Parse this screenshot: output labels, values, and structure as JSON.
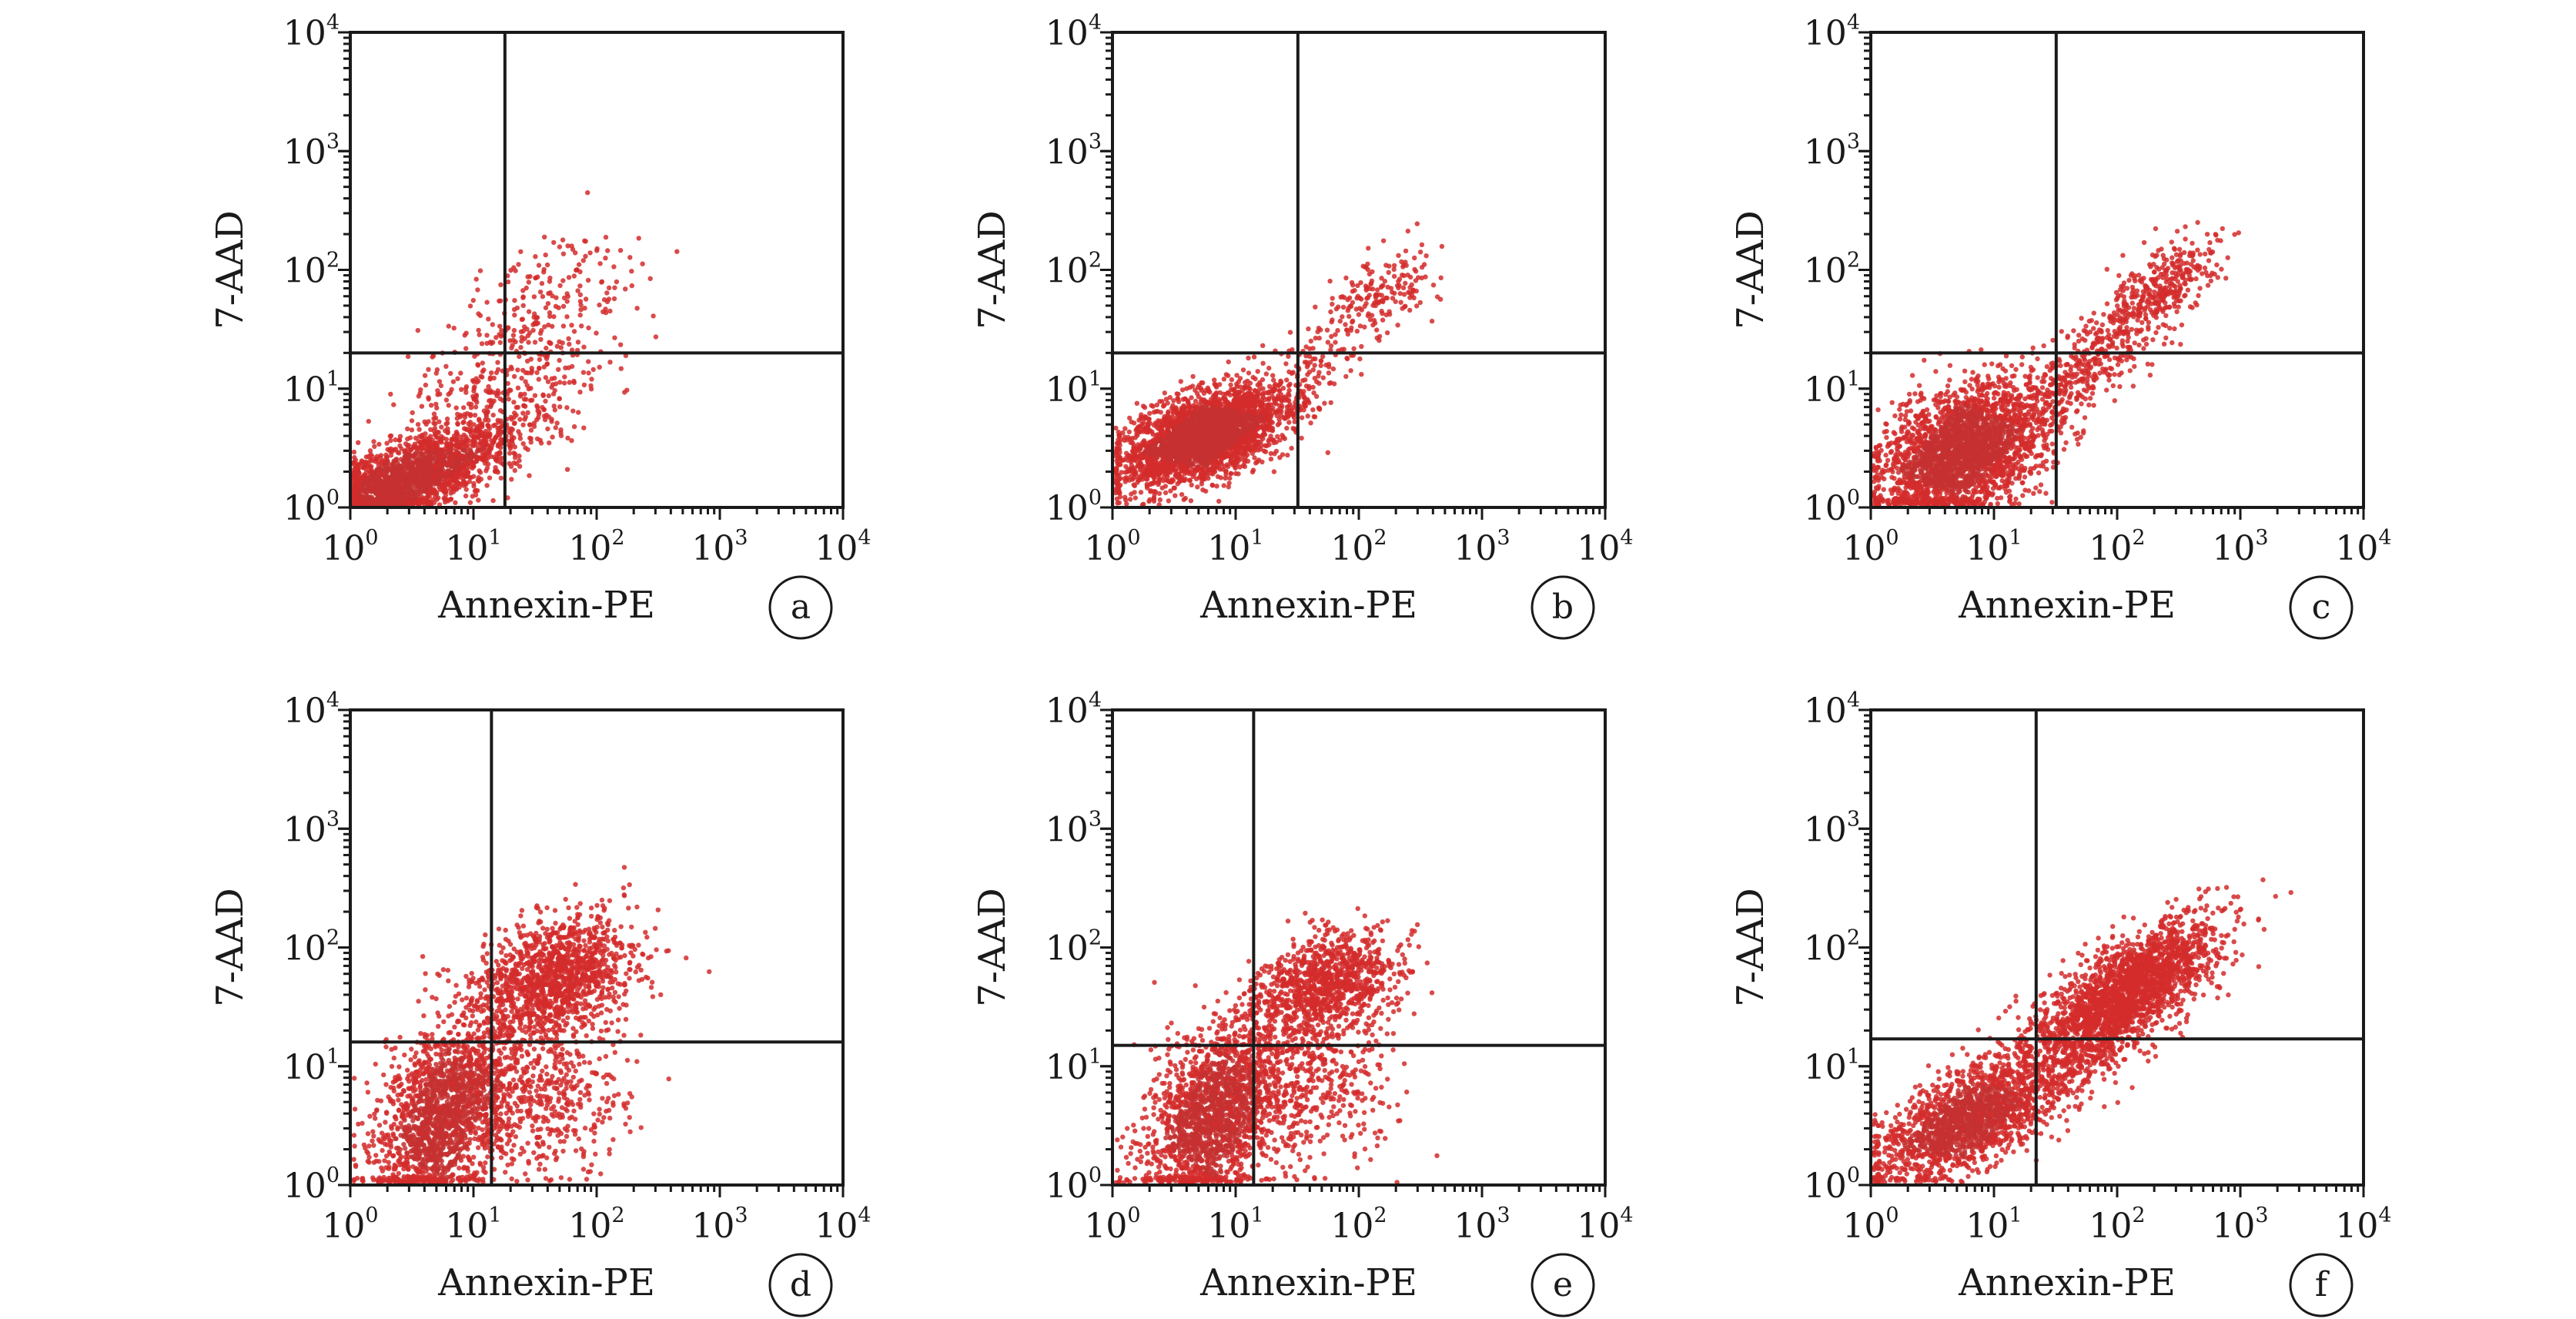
{
  "figure": {
    "panel_count": 6,
    "layout": "2 rows x 3 columns",
    "point_color": "#d42b2b",
    "dense_color": "#c63030"
  },
  "chart_data": [
    {
      "type": "scatter",
      "panel": "a",
      "xlabel": "Annexin-PE",
      "ylabel": "7-AAD",
      "x_scale": "log",
      "y_scale": "log",
      "xlim": [
        1,
        10000
      ],
      "ylim": [
        1,
        10000
      ],
      "x_ticks": [
        "10^0",
        "10^1",
        "10^2",
        "10^3",
        "10^4"
      ],
      "y_ticks": [
        "10^0",
        "10^1",
        "10^2",
        "10^3",
        "10^4"
      ],
      "gate": {
        "x": 18,
        "y": 20
      },
      "populations": [
        {
          "center": [
            2.5,
            1.6
          ],
          "spread": [
            0.45,
            0.25
          ],
          "corr": 0.75,
          "count": 2400
        },
        {
          "center": [
            20,
            12
          ],
          "spread": [
            0.45,
            0.4
          ],
          "corr": 0.5,
          "count": 420
        },
        {
          "center": [
            45,
            70
          ],
          "spread": [
            0.3,
            0.25
          ],
          "corr": 0.4,
          "count": 110
        }
      ]
    },
    {
      "type": "scatter",
      "panel": "b",
      "xlabel": "Annexin-PE",
      "ylabel": "7-AAD",
      "x_scale": "log",
      "y_scale": "log",
      "xlim": [
        1,
        10000
      ],
      "ylim": [
        1,
        10000
      ],
      "x_ticks": [
        "10^0",
        "10^1",
        "10^2",
        "10^3",
        "10^4"
      ],
      "y_ticks": [
        "10^0",
        "10^1",
        "10^2",
        "10^3",
        "10^4"
      ],
      "gate": {
        "x": 32,
        "y": 20
      },
      "populations": [
        {
          "center": [
            5.5,
            4
          ],
          "spread": [
            0.32,
            0.2
          ],
          "corr": 0.5,
          "count": 3000
        },
        {
          "center": [
            45,
            15
          ],
          "spread": [
            0.25,
            0.25
          ],
          "corr": 0.6,
          "count": 140
        },
        {
          "center": [
            150,
            65
          ],
          "spread": [
            0.22,
            0.18
          ],
          "corr": 0.5,
          "count": 170
        }
      ]
    },
    {
      "type": "scatter",
      "panel": "c",
      "xlabel": "Annexin-PE",
      "ylabel": "7-AAD",
      "x_scale": "log",
      "y_scale": "log",
      "xlim": [
        1,
        10000
      ],
      "ylim": [
        1,
        10000
      ],
      "x_ticks": [
        "10^0",
        "10^1",
        "10^2",
        "10^3",
        "10^4"
      ],
      "y_ticks": [
        "10^0",
        "10^1",
        "10^2",
        "10^3",
        "10^4"
      ],
      "gate": {
        "x": 32,
        "y": 20
      },
      "populations": [
        {
          "center": [
            5.5,
            3
          ],
          "spread": [
            0.33,
            0.28
          ],
          "corr": 0.4,
          "count": 2600
        },
        {
          "center": [
            60,
            15
          ],
          "spread": [
            0.3,
            0.3
          ],
          "corr": 0.75,
          "count": 380
        },
        {
          "center": [
            230,
            70
          ],
          "spread": [
            0.22,
            0.2
          ],
          "corr": 0.6,
          "count": 340
        }
      ]
    },
    {
      "type": "scatter",
      "panel": "d",
      "xlabel": "Annexin-PE",
      "ylabel": "7-AAD",
      "x_scale": "log",
      "y_scale": "log",
      "xlim": [
        1,
        10000
      ],
      "ylim": [
        1,
        10000
      ],
      "x_ticks": [
        "10^0",
        "10^1",
        "10^2",
        "10^3",
        "10^4"
      ],
      "y_ticks": [
        "10^0",
        "10^1",
        "10^2",
        "10^3",
        "10^4"
      ],
      "gate": {
        "x": 14,
        "y": 16
      },
      "populations": [
        {
          "center": [
            6,
            4
          ],
          "spread": [
            0.28,
            0.4
          ],
          "corr": 0.4,
          "count": 1800
        },
        {
          "center": [
            45,
            55
          ],
          "spread": [
            0.3,
            0.25
          ],
          "corr": 0.3,
          "count": 1300
        },
        {
          "center": [
            35,
            6
          ],
          "spread": [
            0.35,
            0.35
          ],
          "corr": 0.1,
          "count": 500
        }
      ]
    },
    {
      "type": "scatter",
      "panel": "e",
      "xlabel": "Annexin-PE",
      "ylabel": "7-AAD",
      "x_scale": "log",
      "y_scale": "log",
      "xlim": [
        1,
        10000
      ],
      "ylim": [
        1,
        10000
      ],
      "x_ticks": [
        "10^0",
        "10^1",
        "10^2",
        "10^3",
        "10^4"
      ],
      "y_ticks": [
        "10^0",
        "10^1",
        "10^2",
        "10^3",
        "10^4"
      ],
      "gate": {
        "x": 14,
        "y": 15
      },
      "populations": [
        {
          "center": [
            7,
            4
          ],
          "spread": [
            0.28,
            0.38
          ],
          "corr": 0.4,
          "count": 1800
        },
        {
          "center": [
            55,
            50
          ],
          "spread": [
            0.28,
            0.22
          ],
          "corr": 0.3,
          "count": 1000
        },
        {
          "center": [
            35,
            7
          ],
          "spread": [
            0.35,
            0.35
          ],
          "corr": 0.1,
          "count": 500
        }
      ]
    },
    {
      "type": "scatter",
      "panel": "f",
      "xlabel": "Annexin-PE",
      "ylabel": "7-AAD",
      "x_scale": "log",
      "y_scale": "log",
      "xlim": [
        1,
        10000
      ],
      "ylim": [
        1,
        10000
      ],
      "x_ticks": [
        "10^0",
        "10^1",
        "10^2",
        "10^3",
        "10^4"
      ],
      "y_ticks": [
        "10^0",
        "10^1",
        "10^2",
        "10^3",
        "10^4"
      ],
      "gate": {
        "x": 22,
        "y": 17
      },
      "populations": [
        {
          "center": [
            6,
            3.5
          ],
          "spread": [
            0.35,
            0.25
          ],
          "corr": 0.6,
          "count": 1700
        },
        {
          "center": [
            130,
            45
          ],
          "spread": [
            0.35,
            0.3
          ],
          "corr": 0.7,
          "count": 2000
        },
        {
          "center": [
            40,
            14
          ],
          "spread": [
            0.3,
            0.3
          ],
          "corr": 0.5,
          "count": 500
        }
      ]
    }
  ]
}
